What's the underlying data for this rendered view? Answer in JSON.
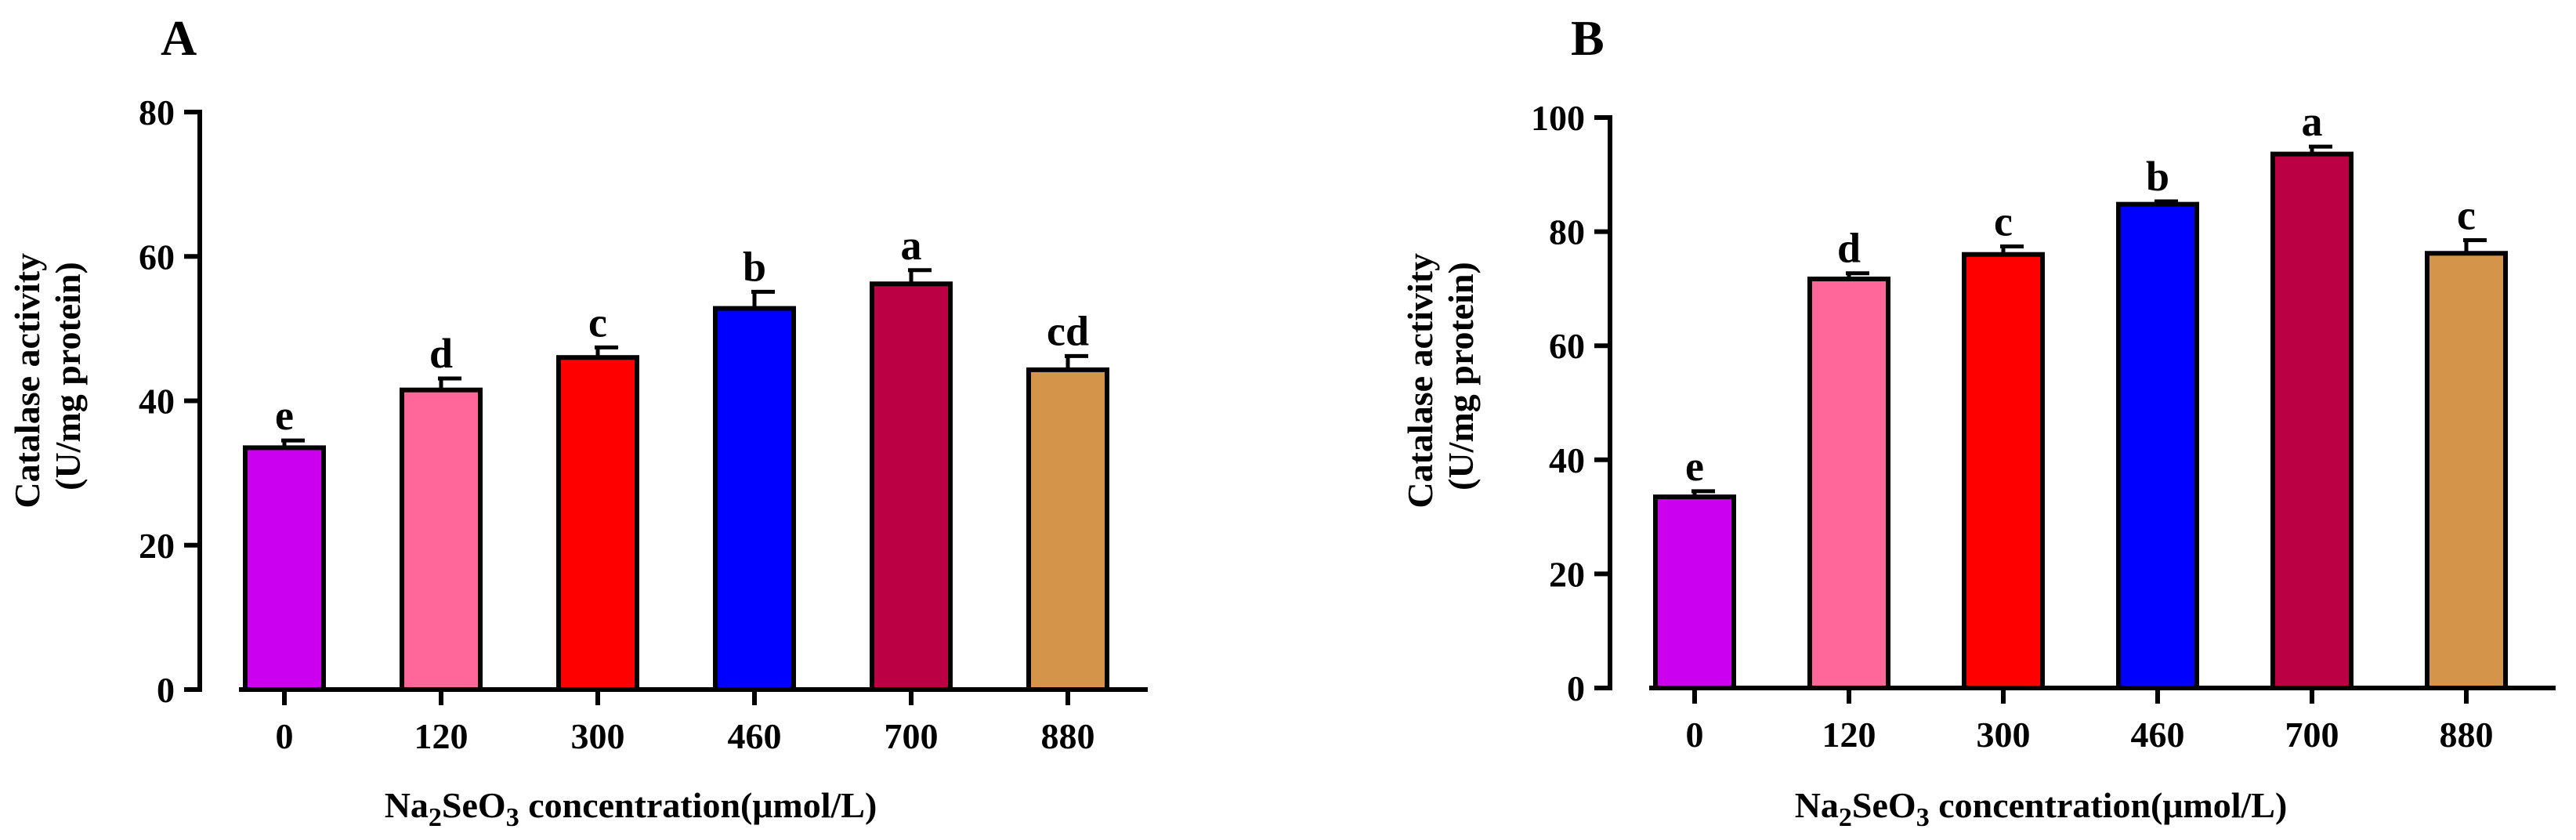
{
  "chart_data": [
    {
      "type": "bar",
      "panel": "A",
      "categories": [
        "0",
        "120",
        "300",
        "460",
        "700",
        "880"
      ],
      "values": [
        33.5,
        41.5,
        46.0,
        52.8,
        56.2,
        44.3
      ],
      "errors": [
        1.0,
        1.6,
        1.4,
        2.3,
        1.9,
        1.9
      ],
      "significance": [
        "e",
        "d",
        "c",
        "b",
        "a",
        "cd"
      ],
      "colors": [
        "#cc00ee",
        "#ff6699",
        "#ff0000",
        "#0000ff",
        "#bb0044",
        "#d4954a"
      ],
      "xlabel": {
        "pre": "Na",
        "sub1": "2",
        "mid": "SeO",
        "sub2": "3",
        "post": " concentration(μmol/L)"
      },
      "ylabel": [
        "Catalase activity",
        "(U/mg protein)"
      ],
      "ylim": [
        0,
        80
      ],
      "yticks": [
        0,
        20,
        40,
        60,
        80
      ]
    },
    {
      "type": "bar",
      "panel": "B",
      "categories": [
        "0",
        "120",
        "300",
        "460",
        "700",
        "880"
      ],
      "values": [
        33.5,
        71.7,
        76.0,
        84.8,
        93.6,
        76.2
      ],
      "errors": [
        1.0,
        1.0,
        1.4,
        0.5,
        1.3,
        2.3
      ],
      "significance": [
        "e",
        "d",
        "c",
        "b",
        "a",
        "c"
      ],
      "colors": [
        "#cc00ee",
        "#ff6699",
        "#ff0000",
        "#0000ff",
        "#bb0044",
        "#d4954a"
      ],
      "xlabel": {
        "pre": "Na",
        "sub1": "2",
        "mid": "SeO",
        "sub2": "3",
        "post": " concentration(μmol/L)"
      },
      "ylabel": [
        "Catalase activity",
        "(U/mg protein)"
      ],
      "ylim": [
        0,
        100
      ],
      "yticks": [
        0,
        20,
        40,
        60,
        80,
        100
      ]
    }
  ]
}
